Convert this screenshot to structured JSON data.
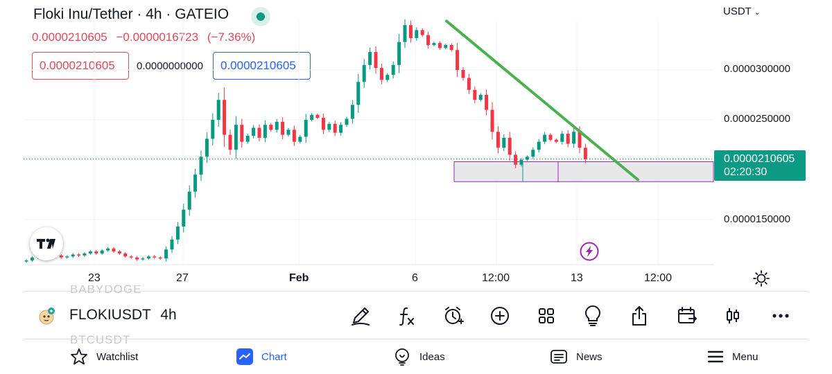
{
  "header": {
    "title": "Floki Inu/Tether · 4h · GATEIO",
    "last_price": "0.0000210605",
    "change": "−0.0000016723",
    "change_pct": "(−7.36%)",
    "sell_price": "0.0000210605",
    "spread": "0.0000000000",
    "buy_price": "0.0000210605",
    "status_color": "#089981"
  },
  "chart": {
    "currency": "USDT",
    "y_labels": [
      "0.0000300000",
      "0.0000250000",
      "0.0000150000"
    ],
    "x_labels": [
      "23",
      "27",
      "Feb",
      "6",
      "12:00",
      "13",
      "12:00"
    ],
    "price_badge": {
      "price": "0.0000210605",
      "countdown": "02:20:30"
    },
    "up_color": "#089981",
    "down_color": "#f23645",
    "trendline_color": "#4caf50"
  },
  "chart_data": {
    "type": "candlestick",
    "x_labels": [
      "23",
      "27",
      "Feb",
      "6",
      "12:00",
      "13",
      "12:00"
    ],
    "y_ticks": [
      3e-05,
      2.5e-05,
      1.5e-05
    ],
    "last_price": 2.10605e-05,
    "trendline": {
      "start_y": 3.49e-05,
      "end_y": 1.9e-05
    },
    "support_zone": [
      1.88e-05,
      2.08e-05
    ],
    "closes": [
      1.09e-05,
      1.12e-05,
      1.13e-05,
      1.12e-05,
      1.13e-05,
      1.14e-05,
      1.12e-05,
      1.13e-05,
      1.15e-05,
      1.14e-05,
      1.16e-05,
      1.18e-05,
      1.16e-05,
      1.19e-05,
      1.21e-05,
      1.18e-05,
      1.16e-05,
      1.13e-05,
      1.12e-05,
      1.1e-05,
      1.11e-05,
      1.13e-05,
      1.12e-05,
      1.11e-05,
      1.2e-05,
      1.3e-05,
      1.43e-05,
      1.6e-05,
      1.78e-05,
      1.95e-05,
      2.13e-05,
      2.31e-05,
      2.5e-05,
      2.7e-05,
      2.35e-05,
      2.2e-05,
      2.45e-05,
      2.28e-05,
      2.34e-05,
      2.42e-05,
      2.32e-05,
      2.45e-05,
      2.4e-05,
      2.48e-05,
      2.35e-05,
      2.4e-05,
      2.28e-05,
      2.33e-05,
      2.5e-05,
      2.55e-05,
      2.52e-05,
      2.4e-05,
      2.46e-05,
      2.37e-05,
      2.45e-05,
      2.51e-05,
      2.65e-05,
      2.88e-05,
      3.05e-05,
      3.18e-05,
      3.02e-05,
      2.9e-05,
      2.95e-05,
      3.05e-05,
      3.28e-05,
      3.45e-05,
      3.32e-05,
      3.4e-05,
      3.35e-05,
      3.25e-05,
      3.27e-05,
      3.22e-05,
      3.25e-05,
      3.2e-05,
      3e-05,
      2.92e-05,
      2.8e-05,
      2.7e-05,
      2.75e-05,
      2.6e-05,
      2.38e-05,
      2.22e-05,
      2.32e-05,
      2.15e-05,
      2.05e-05,
      2.1e-05,
      2.13e-05,
      2.2e-05,
      2.28e-05,
      2.35e-05,
      2.3e-05,
      2.28e-05,
      2.36e-05,
      2.26e-05,
      2.38e-05,
      2.22e-05,
      2.10605e-05
    ]
  },
  "toolbar": {
    "symbol": "FLOKIUSDT",
    "interval": "4h",
    "ghost_above": "BABYDOGE",
    "ghost_below": "BTCUSDT",
    "tools": [
      "draw-icon",
      "indicators-icon",
      "alert-icon",
      "add-icon",
      "layouts-icon",
      "ideas-icon",
      "share-icon",
      "replay-icon",
      "candles-icon",
      "more-icon"
    ]
  },
  "nav": {
    "watchlist": "Watchlist",
    "chart": "Chart",
    "ideas": "Ideas",
    "news": "News",
    "menu": "Menu",
    "active_color": "#2962ff"
  }
}
